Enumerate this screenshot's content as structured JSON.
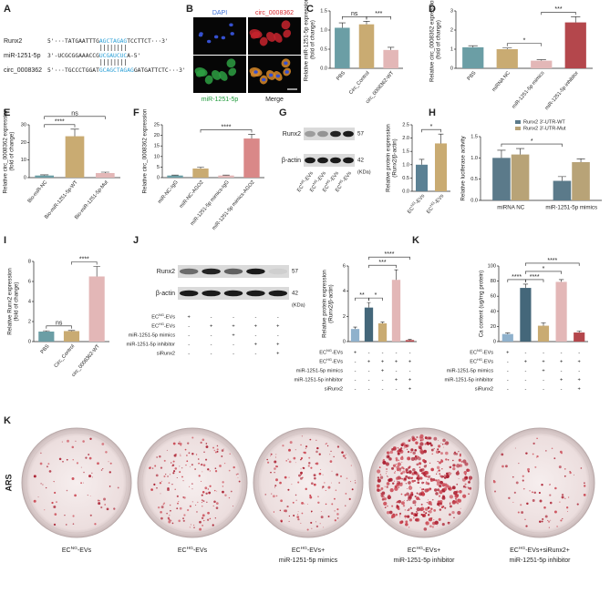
{
  "figure": {
    "panel_a": {
      "letter": "A",
      "lines": [
        {
          "label": "Runx2",
          "seq": [
            "5'···TATGAATTTG",
            "AGCTAGAG",
            "TCCTTCT···3'"
          ]
        },
        {
          "label": "miR-1251-5p",
          "seq": [
            "3'-UCGCGGAAACCG",
            "UCGAUCUC",
            "A-5'"
          ]
        },
        {
          "label": "circ_0008362",
          "seq": [
            "5'···TGCCCTGGAT",
            "GCAGCTAGAG",
            "GATGATTCTC···3'"
          ]
        }
      ]
    },
    "panel_b": {
      "letter": "B",
      "channels": [
        "DAPI",
        "circ_0008362",
        "miR-1251-5p",
        "Merge"
      ]
    },
    "blot_g": {
      "rows": [
        {
          "label": "Runx2",
          "size": 57
        },
        {
          "label": "β-actin",
          "size": 42
        }
      ],
      "unit": "(KDa)",
      "lanes": [
        "ECNG-EVs",
        "ECNG-EVs",
        "ECHG-EVs",
        "ECHG-EVs"
      ]
    },
    "blot_j": {
      "rows": [
        {
          "label": "Runx2",
          "size": 57
        },
        {
          "label": "β-actin",
          "size": 42
        }
      ],
      "unit": "(KDa)"
    },
    "panel_k": {
      "letter": "K",
      "side_label": "ARS",
      "captions": [
        [
          "ECNG-EVs"
        ],
        [
          "ECHG-EVs"
        ],
        [
          "ECHG-EVs+",
          "miR-1251-5p mimics"
        ],
        [
          "ECHG-EVs+",
          "miR-1251-5p inhibitor"
        ],
        [
          "ECHG-EVs+siRunx2+",
          "miR-1251-5p inhibitor"
        ]
      ]
    }
  },
  "chart_data": [
    {
      "type": "bar",
      "panel": "C",
      "ylabel": [
        "Relative miR-1251-5p expression",
        "(fold of change)"
      ],
      "categories": [
        "PBS",
        "Circ_Control",
        "circ_0008362-WT"
      ],
      "values": [
        1.06,
        1.15,
        0.48
      ],
      "errors": [
        0.13,
        0.08,
        0.07
      ],
      "colors": [
        "#6b9ea5",
        "#c9ab72",
        "#e3b7b7"
      ],
      "ylim": [
        0,
        1.5
      ],
      "yticks": [
        {
          "value": 0,
          "label": "0.0"
        },
        0.5,
        {
          "value": 1,
          "label": "1.0"
        },
        1.5
      ],
      "brackets": [
        {
          "from": 0,
          "to": 1,
          "label": "ns"
        },
        {
          "from": 1,
          "to": 2,
          "label": "***"
        }
      ]
    },
    {
      "type": "bar",
      "panel": "D",
      "ylabel": [
        "Relative circ_0008362 expression",
        "(fold of change)"
      ],
      "categories": [
        "PBS",
        "miRNA NC",
        "miR-1251-5p mimics",
        "miR-1251-5p inhibitor"
      ],
      "values": [
        1.1,
        1.0,
        0.4,
        2.4
      ],
      "errors": [
        0.08,
        0.06,
        0.05,
        0.3
      ],
      "colors": [
        "#6b9ea5",
        "#c9ab72",
        "#e3b7b7",
        "#b4474c"
      ],
      "ylim": [
        0,
        3
      ],
      "yticks": [
        0,
        1,
        2,
        3
      ],
      "brackets": [
        {
          "from": 1,
          "to": 2,
          "label": "*"
        },
        {
          "from": 2,
          "to": 3,
          "label": "***"
        }
      ]
    },
    {
      "type": "bar",
      "panel": "E",
      "ylabel": [
        "Relative circ_0008362 expression",
        "(fold of change)"
      ],
      "categories": [
        "Bio-miR-NC",
        "Bio-miR-1251-5p-WT",
        "Bio-miR-1251-5p-Mut"
      ],
      "values": [
        1.2,
        23.5,
        2.6
      ],
      "errors": [
        0.4,
        4,
        0.5
      ],
      "colors": [
        "#6b9ea5",
        "#c9ab72",
        "#e3b7b7"
      ],
      "ylim": [
        0,
        30
      ],
      "yticks": [
        0,
        10,
        20,
        30
      ],
      "brackets": [
        {
          "from": 0,
          "to": 1,
          "label": "****"
        },
        {
          "from": 0,
          "to": 2,
          "label": "ns"
        }
      ]
    },
    {
      "type": "bar",
      "panel": "F",
      "ylabel": [
        "Relative circ_0008362 expression"
      ],
      "categories": [
        "miR-NC-IgG",
        "miR-NC-AGO2",
        "miR-1251-5p mimics-IgG",
        "miR-1251-5p mimics-AGO2"
      ],
      "values": [
        1,
        4.3,
        1,
        18.5
      ],
      "errors": [
        0.2,
        0.6,
        0.2,
        2
      ],
      "colors": [
        "#6b9ea5",
        "#c9ab72",
        "#e3b7b7",
        "#d98888"
      ],
      "ylim": [
        0,
        25
      ],
      "yticks": [
        0,
        5,
        10,
        15,
        20,
        25
      ],
      "brackets": [
        {
          "from": 1,
          "to": 3,
          "label": "****"
        }
      ]
    },
    {
      "type": "bar",
      "panel": "G",
      "ylabel": [
        "Relative protein expression",
        "(Runx2/β-actin)"
      ],
      "categories": [
        "ECNG-EVs",
        "ECHG-EVs"
      ],
      "values": [
        1.0,
        1.8
      ],
      "errors": [
        0.2,
        0.35
      ],
      "colors": [
        "#5b8194",
        "#c9ab72"
      ],
      "ylim": [
        0,
        2.5
      ],
      "yticks": [
        {
          "value": 0,
          "label": "0.0"
        },
        0.5,
        {
          "value": 1,
          "label": "1.0"
        },
        1.5,
        {
          "value": 2,
          "label": "2.0"
        },
        2.5
      ],
      "brackets": [
        {
          "from": 0,
          "to": 1,
          "label": "*"
        }
      ]
    },
    {
      "type": "bar",
      "panel": "H",
      "ylabel": [
        "Relative luciferase activity"
      ],
      "categories": [
        "miRNA NC",
        "miR-1251-5p mimics"
      ],
      "series": [
        {
          "name": "Runx2 3'-UTR-WT",
          "color": "#5b7a8a",
          "values": [
            1.0,
            0.46
          ],
          "errors": [
            0.18,
            0.1
          ]
        },
        {
          "name": "Runx2 3'-UTR-Mut",
          "color": "#b8a377",
          "values": [
            1.08,
            0.9
          ],
          "errors": [
            0.14,
            0.08
          ]
        }
      ],
      "legend": "top",
      "ylim": [
        0,
        1.5
      ],
      "yticks": [
        {
          "value": 0,
          "label": "0.0"
        },
        0.5,
        {
          "value": 1,
          "label": "1.0"
        },
        1.5
      ],
      "brackets": [
        {
          "from": 0,
          "to": 2,
          "label": "*"
        }
      ]
    },
    {
      "type": "bar",
      "panel": "I",
      "ylabel": [
        "Relative Runx2 expression",
        "(fold of change)"
      ],
      "categories": [
        "PBS",
        "Circ_Control",
        "circ_0008362-WT"
      ],
      "values": [
        1,
        1.05,
        6.5
      ],
      "errors": [
        0.08,
        0.06,
        1.0
      ],
      "colors": [
        "#6b9ea5",
        "#c9ab72",
        "#e3b7b7"
      ],
      "ylim": [
        0,
        8
      ],
      "yticks": [
        0,
        2,
        4,
        6,
        8
      ],
      "brackets": [
        {
          "from": 0,
          "to": 1,
          "label": "ns"
        },
        {
          "from": 1,
          "to": 2,
          "label": "****"
        }
      ]
    },
    {
      "type": "bar",
      "panel": "J",
      "ylabel": [
        "Relative protein expression",
        "(Runx2/β-actin)"
      ],
      "values": [
        1.0,
        2.7,
        1.45,
        4.9,
        0.12
      ],
      "errors": [
        0.15,
        0.4,
        0.1,
        0.8,
        0.05
      ],
      "colors": [
        "#8fb1cc",
        "#44677a",
        "#c9ab72",
        "#e3b7b7",
        "#b4474c"
      ],
      "ylim": [
        0,
        6
      ],
      "yticks": [
        0,
        2,
        4,
        6
      ],
      "brackets": [
        {
          "from": 0,
          "to": 1,
          "label": "**"
        },
        {
          "from": 1,
          "to": 2,
          "label": "*"
        },
        {
          "from": 1,
          "to": 3,
          "label": "***"
        },
        {
          "from": 1,
          "to": 4,
          "label": "****"
        }
      ],
      "conditions": [
        {
          "label": "ECNG-EVs",
          "marks": [
            "+",
            "-",
            "-",
            "-",
            "-"
          ]
        },
        {
          "label": "ECHG-EVs",
          "marks": [
            "-",
            "+",
            "+",
            "+",
            "+"
          ]
        },
        {
          "label": "miR-1251-5p mimics",
          "marks": [
            "-",
            "-",
            "+",
            "-",
            "-"
          ]
        },
        {
          "label": "miR-1251-5p inhibitor",
          "marks": [
            "-",
            "-",
            "-",
            "+",
            "+"
          ]
        },
        {
          "label": "siRunx2",
          "marks": [
            "-",
            "-",
            "-",
            "-",
            "+"
          ]
        }
      ]
    },
    {
      "type": "bar",
      "panel": "K",
      "ylabel": [
        "Ca content (ug/mg protein)"
      ],
      "values": [
        10,
        71,
        21,
        79,
        12
      ],
      "errors": [
        1.5,
        5,
        4,
        3,
        2
      ],
      "colors": [
        "#8fb1cc",
        "#44677a",
        "#c9ab72",
        "#e3b7b7",
        "#b4474c"
      ],
      "ylim": [
        0,
        100
      ],
      "yticks": [
        0,
        20,
        40,
        60,
        80,
        100
      ],
      "brackets": [
        {
          "from": 0,
          "to": 1,
          "label": "****"
        },
        {
          "from": 1,
          "to": 2,
          "label": "****"
        },
        {
          "from": 1,
          "to": 3,
          "label": "*"
        },
        {
          "from": 1,
          "to": 4,
          "label": "****"
        }
      ],
      "conditions": [
        {
          "label": "ECNG-EVs",
          "marks": [
            "+",
            "-",
            "-",
            "-",
            "-"
          ]
        },
        {
          "label": "ECHG-EVs",
          "marks": [
            "-",
            "+",
            "+",
            "+",
            "+"
          ]
        },
        {
          "label": "miR-1251-5p mimics",
          "marks": [
            "-",
            "-",
            "+",
            "-",
            "-"
          ]
        },
        {
          "label": "miR-1251-5p inhibitor",
          "marks": [
            "-",
            "-",
            "-",
            "+",
            "+"
          ]
        },
        {
          "label": "siRunx2",
          "marks": [
            "-",
            "-",
            "-",
            "-",
            "+"
          ]
        }
      ]
    }
  ]
}
